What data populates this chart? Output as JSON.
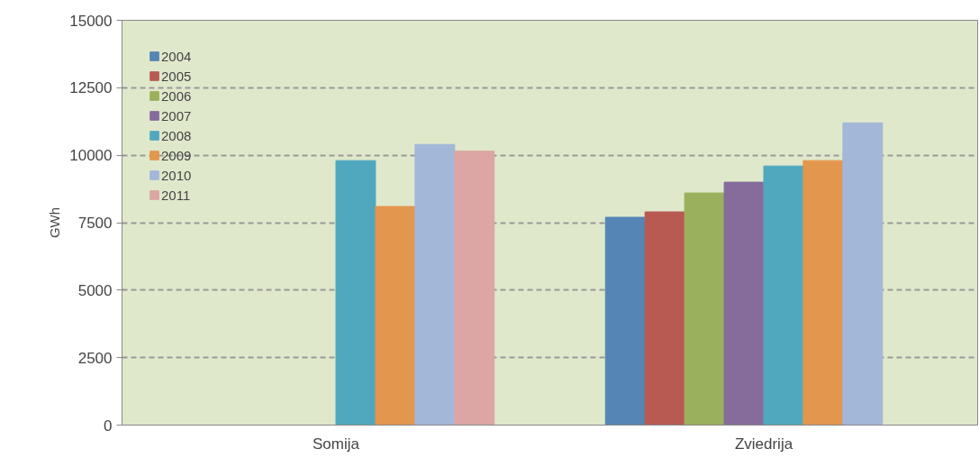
{
  "chart_data": {
    "type": "bar",
    "categories": [
      "Somija",
      "Zviedrija"
    ],
    "ylabel": "GWh",
    "ylim": [
      0,
      15000
    ],
    "yticks": [
      0,
      2500,
      5000,
      7500,
      10000,
      12500,
      15000
    ],
    "grid": "y",
    "legend": "top left",
    "series": [
      {
        "name": "2004",
        "color": "#5585b5",
        "values": [
          null,
          7700
        ]
      },
      {
        "name": "2005",
        "color": "#b85a52",
        "values": [
          null,
          7900
        ]
      },
      {
        "name": "2006",
        "color": "#9bb05c",
        "values": [
          null,
          8600
        ]
      },
      {
        "name": "2007",
        "color": "#856c9b",
        "values": [
          null,
          9000
        ]
      },
      {
        "name": "2008",
        "color": "#50a8bf",
        "values": [
          9800,
          9600
        ]
      },
      {
        "name": "2009",
        "color": "#e3964d",
        "values": [
          8100,
          9800
        ]
      },
      {
        "name": "2010",
        "color": "#a3b7d9",
        "values": [
          10400,
          11200
        ]
      },
      {
        "name": "2011",
        "color": "#dba6a3",
        "values": [
          10150,
          null
        ]
      }
    ]
  }
}
